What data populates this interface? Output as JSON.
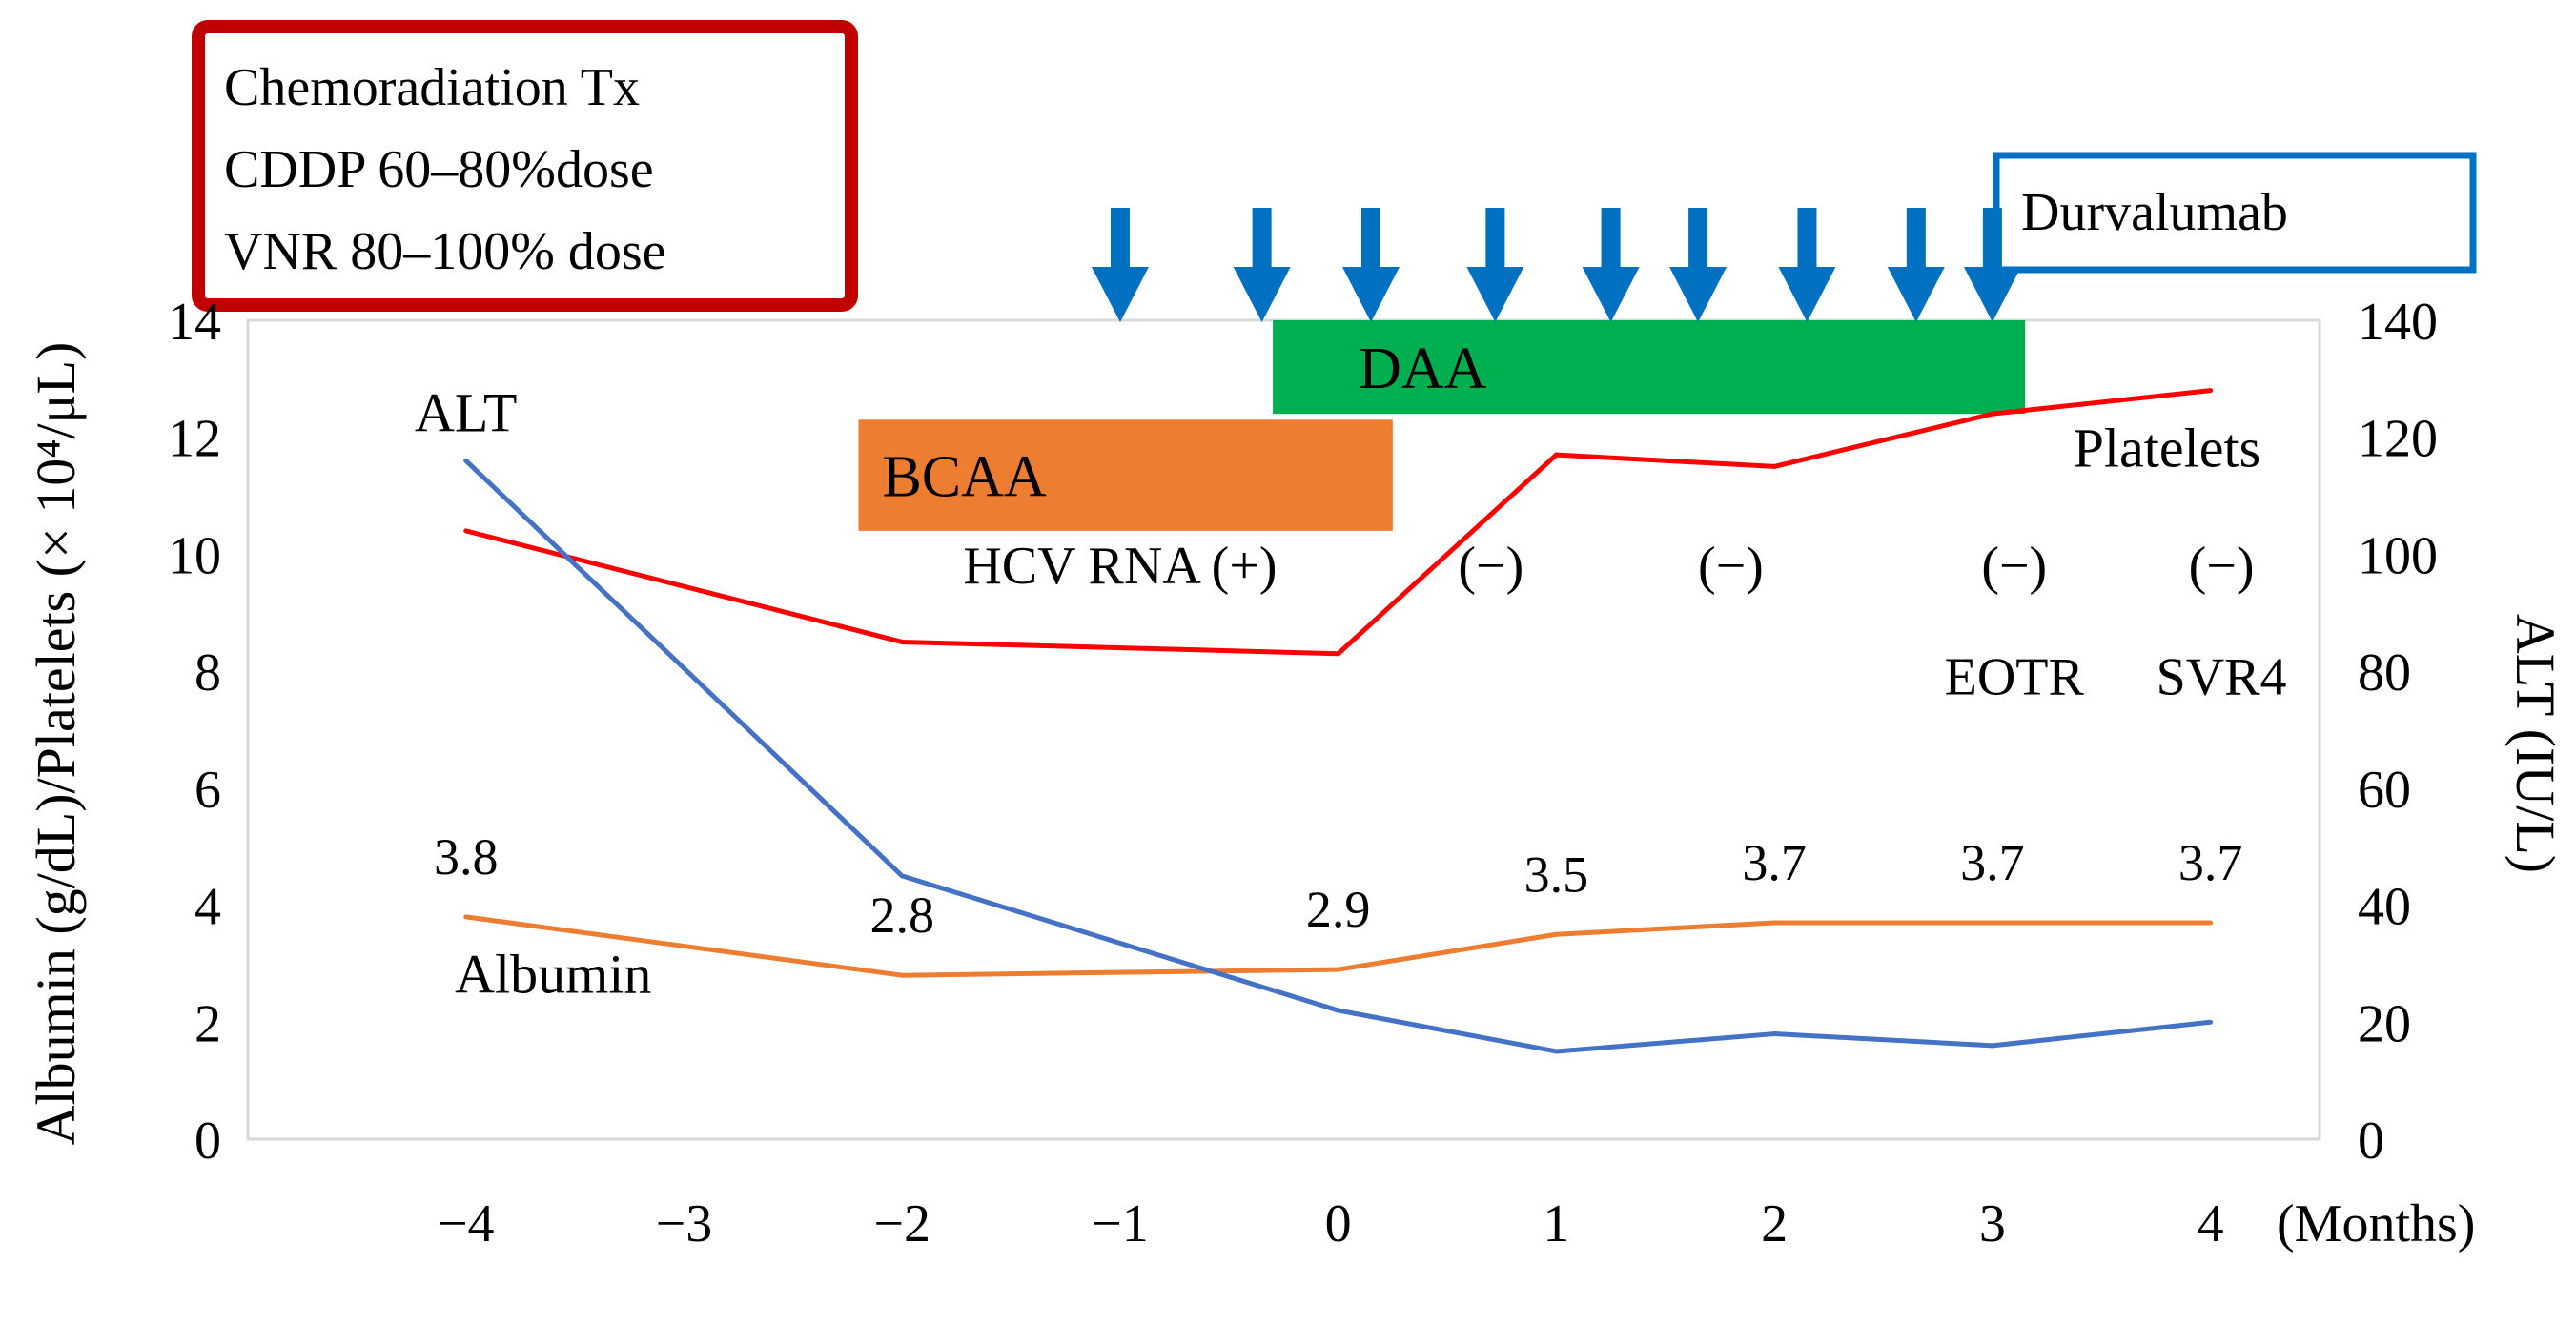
{
  "chart_data": {
    "type": "line",
    "x": [
      -4,
      -2,
      0,
      1,
      2,
      3,
      4
    ],
    "x_ticks": [
      -4,
      -3,
      -2,
      -1,
      0,
      1,
      2,
      3,
      4
    ],
    "x_tick_labels": [
      "−4",
      "−3",
      "−2",
      "−1",
      "0",
      "1",
      "2",
      "3",
      "4"
    ],
    "x_unit_label": "(Months)",
    "xlim": [
      -5,
      4.5
    ],
    "ylabel_left": "Albumin (g/dL)/Platelets (× 10⁴/μL)",
    "ylim_left": [
      0,
      14
    ],
    "y_ticks_left": [
      0,
      2,
      4,
      6,
      8,
      10,
      12,
      14
    ],
    "ylabel_right": "ALT (IU/L)",
    "ylim_right": [
      0,
      140
    ],
    "y_ticks_right": [
      0,
      20,
      40,
      60,
      80,
      100,
      120,
      140
    ],
    "grid": false,
    "series": [
      {
        "name": "Platelets",
        "axis": "left",
        "color": "#ff0000",
        "x": [
          -4,
          -2,
          0,
          1,
          2,
          3,
          4
        ],
        "values": [
          10.4,
          8.5,
          8.3,
          11.7,
          11.5,
          12.4,
          12.8
        ]
      },
      {
        "name": "Albumin",
        "axis": "left",
        "color": "#ed7d31",
        "x": [
          -4,
          -2,
          0,
          1,
          2,
          3,
          4
        ],
        "values": [
          3.8,
          2.8,
          2.9,
          3.5,
          3.7,
          3.7,
          3.7
        ]
      },
      {
        "name": "ALT",
        "axis": "right",
        "color": "#4472c4",
        "x": [
          -4,
          -2,
          0,
          1,
          2,
          3,
          4
        ],
        "values": [
          116,
          45,
          22,
          15,
          18,
          16,
          20
        ]
      }
    ],
    "albumin_labels": [
      {
        "x": -4,
        "text": "3.8"
      },
      {
        "x": -2,
        "text": "2.8"
      },
      {
        "x": 0,
        "text": "2.9"
      },
      {
        "x": 1,
        "text": "3.5"
      },
      {
        "x": 2,
        "text": "3.7"
      },
      {
        "x": 3,
        "text": "3.7"
      },
      {
        "x": 4,
        "text": "3.7"
      }
    ],
    "treatment_bars": [
      {
        "label": "BCAA",
        "x_start": -2.2,
        "x_end": 0.25,
        "y_top": 12.3,
        "y_bottom": 10.4,
        "color": "#ed7d31"
      },
      {
        "label": "DAA",
        "x_start": -0.3,
        "x_end": 3.15,
        "y_top": 14,
        "y_bottom": 12.4,
        "color": "#00b050"
      }
    ],
    "hcv_rna": [
      {
        "x": -1,
        "text": "HCV RNA (+)"
      },
      {
        "x": 0.7,
        "text": "(−)"
      },
      {
        "x": 1.8,
        "text": "(−)"
      },
      {
        "x": 3.1,
        "text": "(−)"
      },
      {
        "x": 4.05,
        "text": "(−)"
      }
    ],
    "milestones": [
      {
        "x": 3.1,
        "text": "EOTR"
      },
      {
        "x": 4.05,
        "text": "SVR4"
      }
    ],
    "durvalumab_doses_x": [
      -1,
      -0.35,
      0.15,
      0.72,
      1.25,
      1.65,
      2.15,
      2.65,
      3.0
    ],
    "durvalumab_color": "#0070c0",
    "boxes": {
      "chemoradiation": {
        "lines": [
          "Chemoradiation  Tx",
          "CDDP 60–80%dose",
          "VNR 80–100% dose"
        ],
        "border_color": "#c00000"
      },
      "durvalumab": {
        "text": "Durvalumab",
        "border_color": "#0070c0"
      }
    },
    "series_labels": [
      {
        "series": "ALT",
        "text": "ALT"
      },
      {
        "series": "Albumin",
        "text": "Albumin"
      },
      {
        "series": "Platelets",
        "text": "Platelets"
      }
    ]
  }
}
